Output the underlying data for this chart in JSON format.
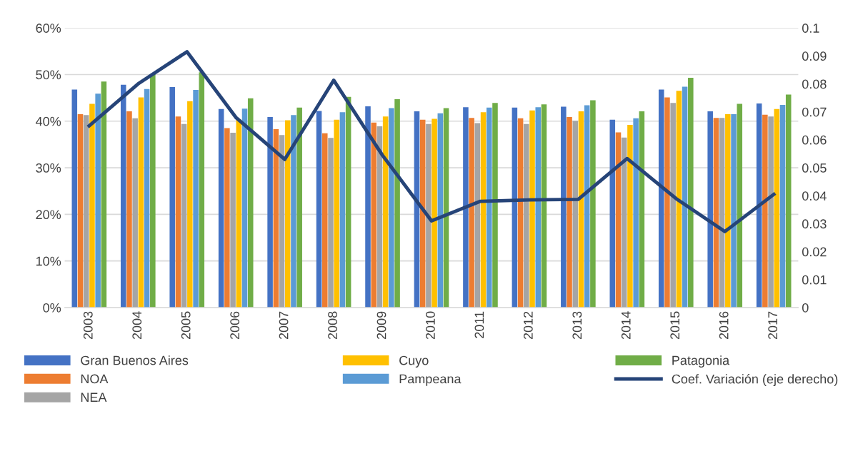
{
  "chart_data": {
    "type": "bar",
    "categories": [
      "2003",
      "2004",
      "2005",
      "2006",
      "2007",
      "2008",
      "2009",
      "2010",
      "2011",
      "2012",
      "2013",
      "2014",
      "2015",
      "2016",
      "2017"
    ],
    "series": [
      {
        "name": "Gran Buenos Aires",
        "color": "#4472c4",
        "values": [
          46.8,
          47.8,
          47.3,
          42.6,
          40.9,
          42.2,
          43.2,
          42.1,
          43.0,
          42.9,
          43.1,
          40.3,
          46.8,
          42.1,
          43.8
        ]
      },
      {
        "name": "NOA",
        "color": "#ed7d31",
        "values": [
          41.5,
          42.1,
          41.0,
          38.5,
          38.3,
          37.4,
          39.7,
          40.3,
          40.7,
          40.6,
          40.9,
          37.6,
          45.1,
          40.7,
          41.4
        ]
      },
      {
        "name": "NEA",
        "color": "#a5a5a5",
        "values": [
          41.3,
          40.6,
          39.4,
          37.5,
          37.0,
          36.4,
          38.9,
          39.4,
          39.6,
          39.4,
          40.1,
          36.5,
          43.9,
          40.7,
          41.0
        ]
      },
      {
        "name": "Cuyo",
        "color": "#ffc000",
        "values": [
          43.7,
          45.1,
          44.3,
          40.3,
          40.2,
          40.3,
          41.0,
          40.5,
          41.9,
          42.3,
          42.1,
          39.2,
          46.5,
          41.5,
          42.6
        ]
      },
      {
        "name": "Pampeana",
        "color": "#5b9bd5",
        "values": [
          45.9,
          46.9,
          46.7,
          42.7,
          41.3,
          41.9,
          42.8,
          41.7,
          42.9,
          43.0,
          43.4,
          40.6,
          47.4,
          41.5,
          43.5
        ]
      },
      {
        "name": "Patagonia",
        "color": "#70ad47",
        "values": [
          48.5,
          50.1,
          50.5,
          44.9,
          42.9,
          45.2,
          44.7,
          42.8,
          43.9,
          43.6,
          44.5,
          42.1,
          49.3,
          43.7,
          45.7
        ]
      },
      {
        "name": "Coef. Variación (eje derecho)",
        "type": "line",
        "axis": "y2",
        "color": "#264478",
        "values": [
          0.065,
          0.08,
          0.0915,
          0.068,
          0.053,
          0.0813,
          0.0544,
          0.031,
          0.038,
          0.0385,
          0.0387,
          0.0533,
          0.039,
          0.0272,
          0.0405
        ]
      }
    ],
    "ylim": [
      0,
      60
    ],
    "yticks": [
      {
        "value": 0,
        "label": "0%"
      },
      {
        "value": 10,
        "label": "10%"
      },
      {
        "value": 20,
        "label": "20%"
      },
      {
        "value": 30,
        "label": "30%"
      },
      {
        "value": 40,
        "label": "40%"
      },
      {
        "value": 50,
        "label": "50%"
      },
      {
        "value": 60,
        "label": "60%"
      }
    ],
    "y2lim": [
      0,
      0.1
    ],
    "y2ticks": [
      0,
      0.01,
      0.02,
      0.03,
      0.04,
      0.05,
      0.06,
      0.07,
      0.08,
      0.09,
      0.1
    ],
    "grid": "y",
    "legend": "bottom",
    "line_style": "solid",
    "marker": "none"
  }
}
